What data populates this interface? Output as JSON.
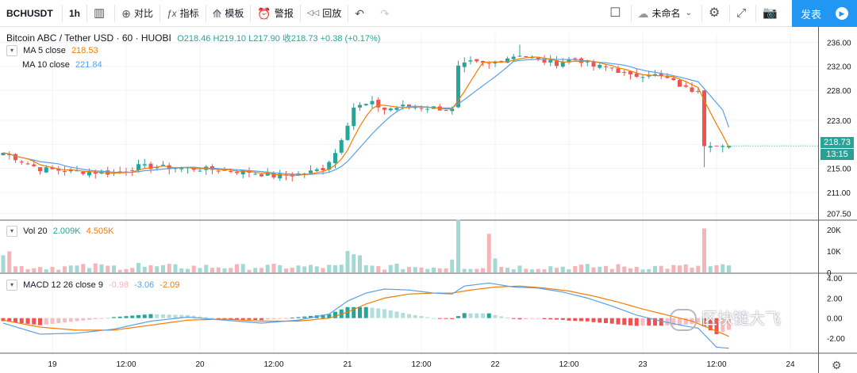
{
  "toolbar": {
    "symbol": "BCHUSDT",
    "interval": "1h",
    "items": [
      {
        "icon": "plus-circle-icon",
        "glyph": "⊕",
        "label": "对比"
      },
      {
        "icon": "indicators-icon",
        "glyph": "ƒx",
        "label": "指标"
      },
      {
        "icon": "templates-icon",
        "glyph": "⟰",
        "label": "模板"
      },
      {
        "icon": "alarm-clock-icon",
        "glyph": "⏰",
        "label": "警报"
      },
      {
        "icon": "replay-icon",
        "glyph": "◁◁",
        "label": "回放"
      }
    ],
    "layout_name": "未命名",
    "publish_label": "发表"
  },
  "header": {
    "title": "Bitcoin ABC / Tether USD · 60 · HUOBI",
    "ohlc": "O218.46 H219.10 L217.90 收218.73 +0.38 (+0.17%)"
  },
  "legends": {
    "ma5": {
      "label": "MA 5 close",
      "value": "218.53"
    },
    "ma10": {
      "label": "MA 10 close",
      "value": "221.84"
    },
    "vol": {
      "label": "Vol 20",
      "v1": "2.009K",
      "v2": "4.505K"
    },
    "macd": {
      "label": "MACD 12 26 close 9",
      "v1": "-0.98",
      "v2": "-3.06",
      "v3": "-2.09"
    }
  },
  "price_tags": {
    "last": "218.73",
    "countdown": "13:15"
  },
  "watermark": "区块链大飞",
  "colors": {
    "up": "#26a69a",
    "down": "#ef5350",
    "ma5": "#f57c00",
    "ma10": "#5aa0e6",
    "macd": "#5aa0e6",
    "signal": "#f57c00"
  },
  "chart_data": [
    {
      "type": "candlestick",
      "title": "Bitcoin ABC / Tether USD · 60 · HUOBI",
      "y_ticks": [
        236.0,
        232.0,
        228.0,
        223.0,
        219.0,
        215.0,
        211.0,
        207.5
      ],
      "y_tick_labels": [
        "236.00",
        "232.00",
        "228.00",
        "223.00",
        "219.00",
        "215.00",
        "211.00",
        "207.50"
      ],
      "ylim": [
        206.5,
        237.5
      ],
      "x_tick_labels": [
        "19",
        "12:00",
        "20",
        "12:00",
        "21",
        "12:00",
        "22",
        "12:00",
        "23",
        "12:00",
        "24"
      ],
      "x_tick_slots": [
        8,
        20,
        32,
        44,
        56,
        68,
        80,
        92,
        104,
        116,
        128
      ],
      "grid": true,
      "slots": 136,
      "close_anchors": [
        [
          0,
          217.6
        ],
        [
          6,
          214.9
        ],
        [
          12,
          214.5
        ],
        [
          18,
          214.2
        ],
        [
          22,
          215.3
        ],
        [
          28,
          215.1
        ],
        [
          34,
          214.8
        ],
        [
          40,
          214.4
        ],
        [
          44,
          213.7
        ],
        [
          47,
          213.9
        ],
        [
          50,
          214.4
        ],
        [
          52,
          215.0
        ],
        [
          54,
          217.6
        ],
        [
          56,
          222.5
        ],
        [
          57,
          225.2
        ],
        [
          60,
          225.8
        ],
        [
          62,
          224.8
        ],
        [
          65,
          225.3
        ],
        [
          70,
          225.1
        ],
        [
          73,
          224.7
        ],
        [
          74,
          231.8
        ],
        [
          76,
          232.6
        ],
        [
          79,
          232.3
        ],
        [
          81,
          233.2
        ],
        [
          84,
          234.0
        ],
        [
          87,
          233.0
        ],
        [
          90,
          232.5
        ],
        [
          93,
          233.4
        ],
        [
          96,
          232.0
        ],
        [
          99,
          231.7
        ],
        [
          102,
          230.3
        ],
        [
          105,
          230.8
        ],
        [
          108,
          229.9
        ],
        [
          111,
          228.3
        ],
        [
          113,
          227.8
        ],
        [
          114,
          218.7
        ],
        [
          118,
          218.73
        ]
      ],
      "series": [
        {
          "name": "MA 5 close",
          "last": 218.53
        },
        {
          "name": "MA 10 close",
          "last": 221.84
        }
      ],
      "last_price": 218.73
    },
    {
      "type": "bar",
      "title": "Vol 20",
      "y_ticks": [
        0,
        10000,
        20000
      ],
      "y_tick_labels": [
        "0",
        "10K",
        "20K"
      ],
      "ylim": [
        0,
        24000
      ],
      "spikes": [
        [
          74,
          24500
        ],
        [
          79,
          18000
        ],
        [
          56,
          10000
        ],
        [
          57,
          8500
        ],
        [
          114,
          20500
        ],
        [
          0,
          8000
        ],
        [
          1,
          9800
        ],
        [
          15,
          4200
        ],
        [
          22,
          4400
        ],
        [
          58,
          8000
        ],
        [
          73,
          6000
        ],
        [
          80,
          6500
        ]
      ],
      "base": 2400,
      "series": [
        {
          "name": "Vol 20",
          "value": "2.009K"
        },
        {
          "name": "MA",
          "value": "4.505K"
        }
      ]
    },
    {
      "type": "bar+line",
      "title": "MACD 12 26 close 9",
      "y_ticks": [
        4.0,
        2.0,
        0.0,
        -2.0
      ],
      "y_tick_labels": [
        "4.00",
        "2.00",
        "0.00",
        "-2.00"
      ],
      "ylim": [
        -3.5,
        4.4
      ],
      "macd_anchors": [
        [
          0,
          -0.5
        ],
        [
          6,
          -1.6
        ],
        [
          12,
          -1.5
        ],
        [
          18,
          -1.1
        ],
        [
          24,
          -0.3
        ],
        [
          30,
          0.1
        ],
        [
          36,
          -0.2
        ],
        [
          42,
          -0.5
        ],
        [
          48,
          -0.2
        ],
        [
          53,
          0.4
        ],
        [
          56,
          1.7
        ],
        [
          59,
          2.5
        ],
        [
          62,
          2.9
        ],
        [
          66,
          2.8
        ],
        [
          70,
          2.5
        ],
        [
          73,
          2.4
        ],
        [
          75,
          3.2
        ],
        [
          79,
          3.5
        ],
        [
          83,
          3.1
        ],
        [
          87,
          3.0
        ],
        [
          91,
          2.6
        ],
        [
          95,
          2.0
        ],
        [
          99,
          1.2
        ],
        [
          103,
          0.3
        ],
        [
          107,
          -0.3
        ],
        [
          111,
          -0.8
        ],
        [
          113,
          -1.0
        ],
        [
          116,
          -2.9
        ],
        [
          119,
          -3.06
        ]
      ],
      "signal_anchors": [
        [
          0,
          -0.2
        ],
        [
          6,
          -0.9
        ],
        [
          12,
          -1.2
        ],
        [
          18,
          -1.2
        ],
        [
          24,
          -0.7
        ],
        [
          30,
          -0.2
        ],
        [
          36,
          -0.1
        ],
        [
          42,
          -0.3
        ],
        [
          48,
          -0.3
        ],
        [
          53,
          0.0
        ],
        [
          56,
          0.6
        ],
        [
          59,
          1.4
        ],
        [
          62,
          2.0
        ],
        [
          66,
          2.4
        ],
        [
          70,
          2.5
        ],
        [
          73,
          2.5
        ],
        [
          76,
          2.8
        ],
        [
          80,
          3.1
        ],
        [
          84,
          3.2
        ],
        [
          88,
          3.0
        ],
        [
          92,
          2.7
        ],
        [
          96,
          2.2
        ],
        [
          100,
          1.6
        ],
        [
          104,
          0.9
        ],
        [
          108,
          0.3
        ],
        [
          112,
          -0.3
        ],
        [
          116,
          -1.3
        ],
        [
          119,
          -2.09
        ]
      ],
      "series": [
        {
          "name": "histogram",
          "value": "-0.98"
        },
        {
          "name": "MACD",
          "value": "-3.06"
        },
        {
          "name": "signal",
          "value": "-2.09"
        }
      ]
    }
  ]
}
